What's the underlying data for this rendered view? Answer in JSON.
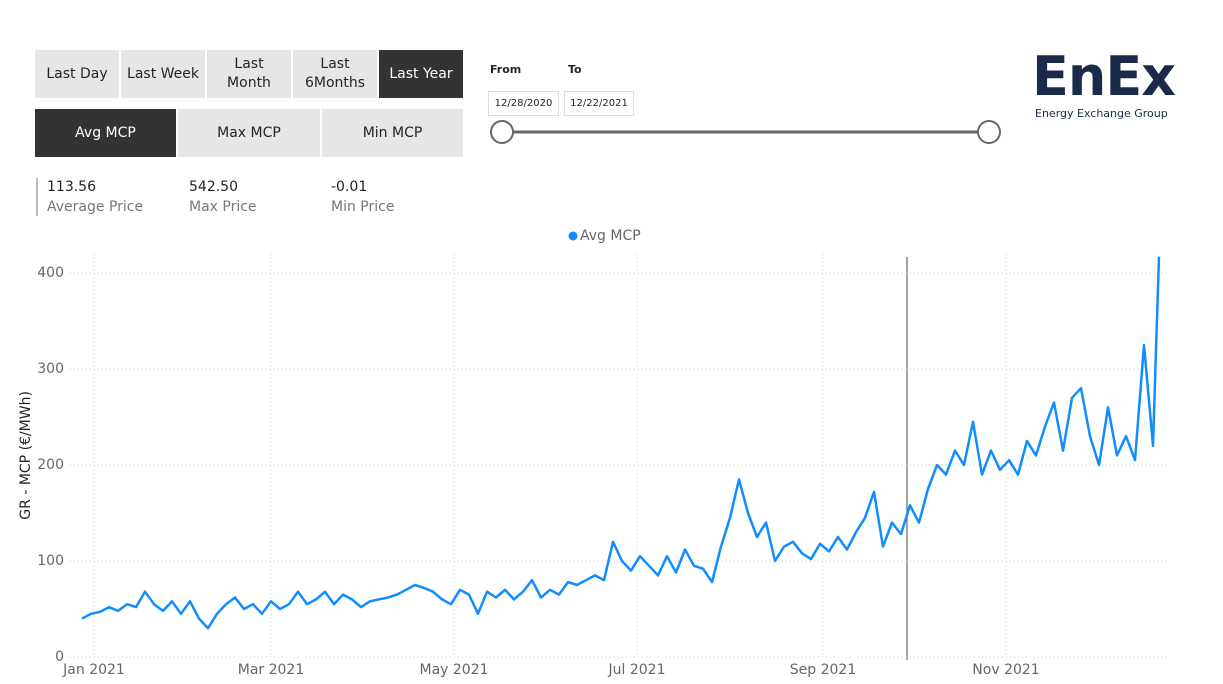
{
  "filters": {
    "periods": [
      "Last Day",
      "Last Week",
      "Last Month",
      "Last 6Months",
      "Last Year"
    ],
    "measures": [
      "Avg MCP",
      "Max MCP",
      "Min MCP"
    ]
  },
  "date_range": {
    "from_label": "From",
    "to_label": "To",
    "from": "12/28/2020",
    "to": "12/22/2021"
  },
  "kpis": [
    {
      "value": "113.56",
      "label": "Average Price"
    },
    {
      "value": "542.50",
      "label": "Max Price"
    },
    {
      "value": "-0.01",
      "label": "Min Price"
    }
  ],
  "logo": {
    "name": "EnEx",
    "tagline": "Energy Exchange Group"
  },
  "chart_data": {
    "type": "line",
    "y_label": "GR - MCP (€/MWh)",
    "legend": "top",
    "grid": true,
    "x": [
      0,
      3,
      6,
      9,
      12,
      15,
      18,
      21,
      24,
      27,
      30,
      33,
      36,
      39,
      42,
      45,
      48,
      51,
      54,
      57,
      60,
      63,
      66,
      69,
      72,
      75,
      78,
      81,
      84,
      87,
      90,
      93,
      96,
      99,
      102,
      105,
      108,
      111,
      114,
      117,
      120,
      123,
      126,
      129,
      132,
      135,
      138,
      141,
      144,
      147,
      150,
      153,
      156,
      159,
      162,
      165,
      168,
      171,
      174,
      177,
      180,
      183,
      186,
      189,
      192,
      195,
      198,
      201,
      204,
      207,
      210,
      213,
      216,
      219,
      222,
      225,
      228,
      231,
      234,
      237,
      240,
      243,
      246,
      249,
      252,
      255,
      258,
      261,
      264,
      267,
      270,
      273,
      276,
      279,
      282,
      285,
      288,
      291,
      294,
      297,
      300,
      303,
      306,
      309,
      312,
      315,
      318,
      321,
      324,
      327,
      330,
      333,
      336,
      339,
      342,
      345,
      348,
      351,
      354,
      357,
      358,
      359
    ],
    "series": [
      {
        "name": "Avg MCP",
        "color": "#118dff",
        "values": [
          40,
          45,
          47,
          52,
          48,
          55,
          52,
          68,
          55,
          48,
          58,
          45,
          58,
          40,
          30,
          45,
          55,
          62,
          50,
          55,
          45,
          58,
          50,
          55,
          68,
          55,
          60,
          68,
          55,
          65,
          60,
          52,
          58,
          60,
          62,
          65,
          70,
          75,
          72,
          68,
          60,
          55,
          70,
          65,
          45,
          68,
          62,
          70,
          60,
          68,
          80,
          62,
          70,
          65,
          78,
          75,
          80,
          85,
          80,
          120,
          100,
          90,
          105,
          95,
          85,
          105,
          88,
          112,
          95,
          92,
          78,
          115,
          145,
          185,
          150,
          125,
          140,
          100,
          115,
          120,
          108,
          102,
          118,
          110,
          125,
          112,
          130,
          145,
          172,
          115,
          140,
          128,
          158,
          140,
          175,
          200,
          190,
          215,
          200,
          245,
          190,
          215,
          195,
          205,
          190,
          225,
          210,
          240,
          265,
          215,
          270,
          280,
          230,
          200,
          260,
          210,
          230,
          205,
          325,
          220,
          320,
          417
        ]
      }
    ],
    "xlim": [
      -4,
      362
    ],
    "ylim": [
      0,
      420
    ],
    "xticks": [
      {
        "value": 4,
        "label": "Jan 2021"
      },
      {
        "value": 63,
        "label": "Mar 2021"
      },
      {
        "value": 124,
        "label": "May 2021"
      },
      {
        "value": 185,
        "label": "Jul 2021"
      },
      {
        "value": 247,
        "label": "Sep 2021"
      },
      {
        "value": 308,
        "label": "Nov 2021"
      }
    ],
    "yticks": [
      0,
      100,
      200,
      300,
      400
    ]
  }
}
